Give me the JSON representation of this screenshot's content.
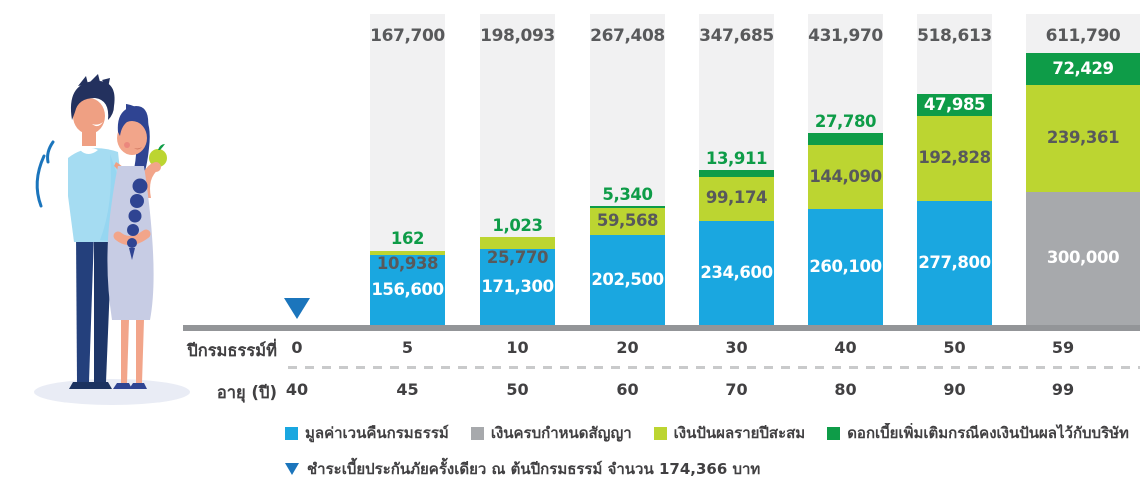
{
  "colors": {
    "surrender_blue": "#1AA7E0",
    "maturity_gray": "#A7A9AC",
    "dividend_yellow_green": "#BCD531",
    "interest_dark_green": "#0E9C48",
    "track_gray": "#F1F1F2",
    "axis_line_gray": "#939598",
    "text_dark_gray": "#58595B",
    "label_dark": "#414042",
    "marker_blue": "#1B75BC"
  },
  "chart_data": {
    "type": "bar",
    "stacked": true,
    "legend_position": "bottom",
    "grid": false,
    "series": [
      {
        "key": "surrender",
        "name": "มูลค่าเวนคืนกรมธรรม์",
        "color": "#1AA7E0"
      },
      {
        "key": "maturity",
        "name": "เงินครบกำหนดสัญญา",
        "color": "#A7A9AC"
      },
      {
        "key": "dividend",
        "name": "เงินปันผลรายปีสะสม",
        "color": "#BCD531"
      },
      {
        "key": "interest",
        "name": "ดอกเบี้ยเพิ่มเติมกรณีคงเงินปันผลไว้กับบริษัท",
        "color": "#0E9C48"
      }
    ],
    "x_axis": {
      "row1_label": "ปีกรมธรรม์ที่",
      "row2_label": "อายุ (ปี)",
      "policy_years": [
        0,
        5,
        10,
        20,
        30,
        40,
        50,
        59
      ],
      "ages": [
        40,
        45,
        50,
        60,
        70,
        80,
        90,
        99
      ]
    },
    "bars": [
      {
        "policy_year": 5,
        "age": 45,
        "total": 167700,
        "surrender": 156600,
        "maturity": 0,
        "dividend": 10938,
        "interest": 162
      },
      {
        "policy_year": 10,
        "age": 50,
        "total": 198093,
        "surrender": 171300,
        "maturity": 0,
        "dividend": 25770,
        "interest": 1023
      },
      {
        "policy_year": 20,
        "age": 60,
        "total": 267408,
        "surrender": 202500,
        "maturity": 0,
        "dividend": 59568,
        "interest": 5340
      },
      {
        "policy_year": 30,
        "age": 70,
        "total": 347685,
        "surrender": 234600,
        "maturity": 0,
        "dividend": 99174,
        "interest": 13911
      },
      {
        "policy_year": 40,
        "age": 80,
        "total": 431970,
        "surrender": 260100,
        "maturity": 0,
        "dividend": 144090,
        "interest": 27780
      },
      {
        "policy_year": 50,
        "age": 90,
        "total": 518613,
        "surrender": 277800,
        "maturity": 0,
        "dividend": 192828,
        "interest": 47985
      },
      {
        "policy_year": 59,
        "age": 99,
        "total": 611790,
        "surrender": 0,
        "maturity": 300000,
        "dividend": 239361,
        "interest": 72429
      }
    ],
    "premium_marker_year": 0,
    "premium_note": "ชำระเบี้ยประกันภัยครั้งเดียว ณ ต้นปีกรมธรรม์ จำนวน 174,366 บาท"
  },
  "illustration_name": "couple-eating-apple"
}
